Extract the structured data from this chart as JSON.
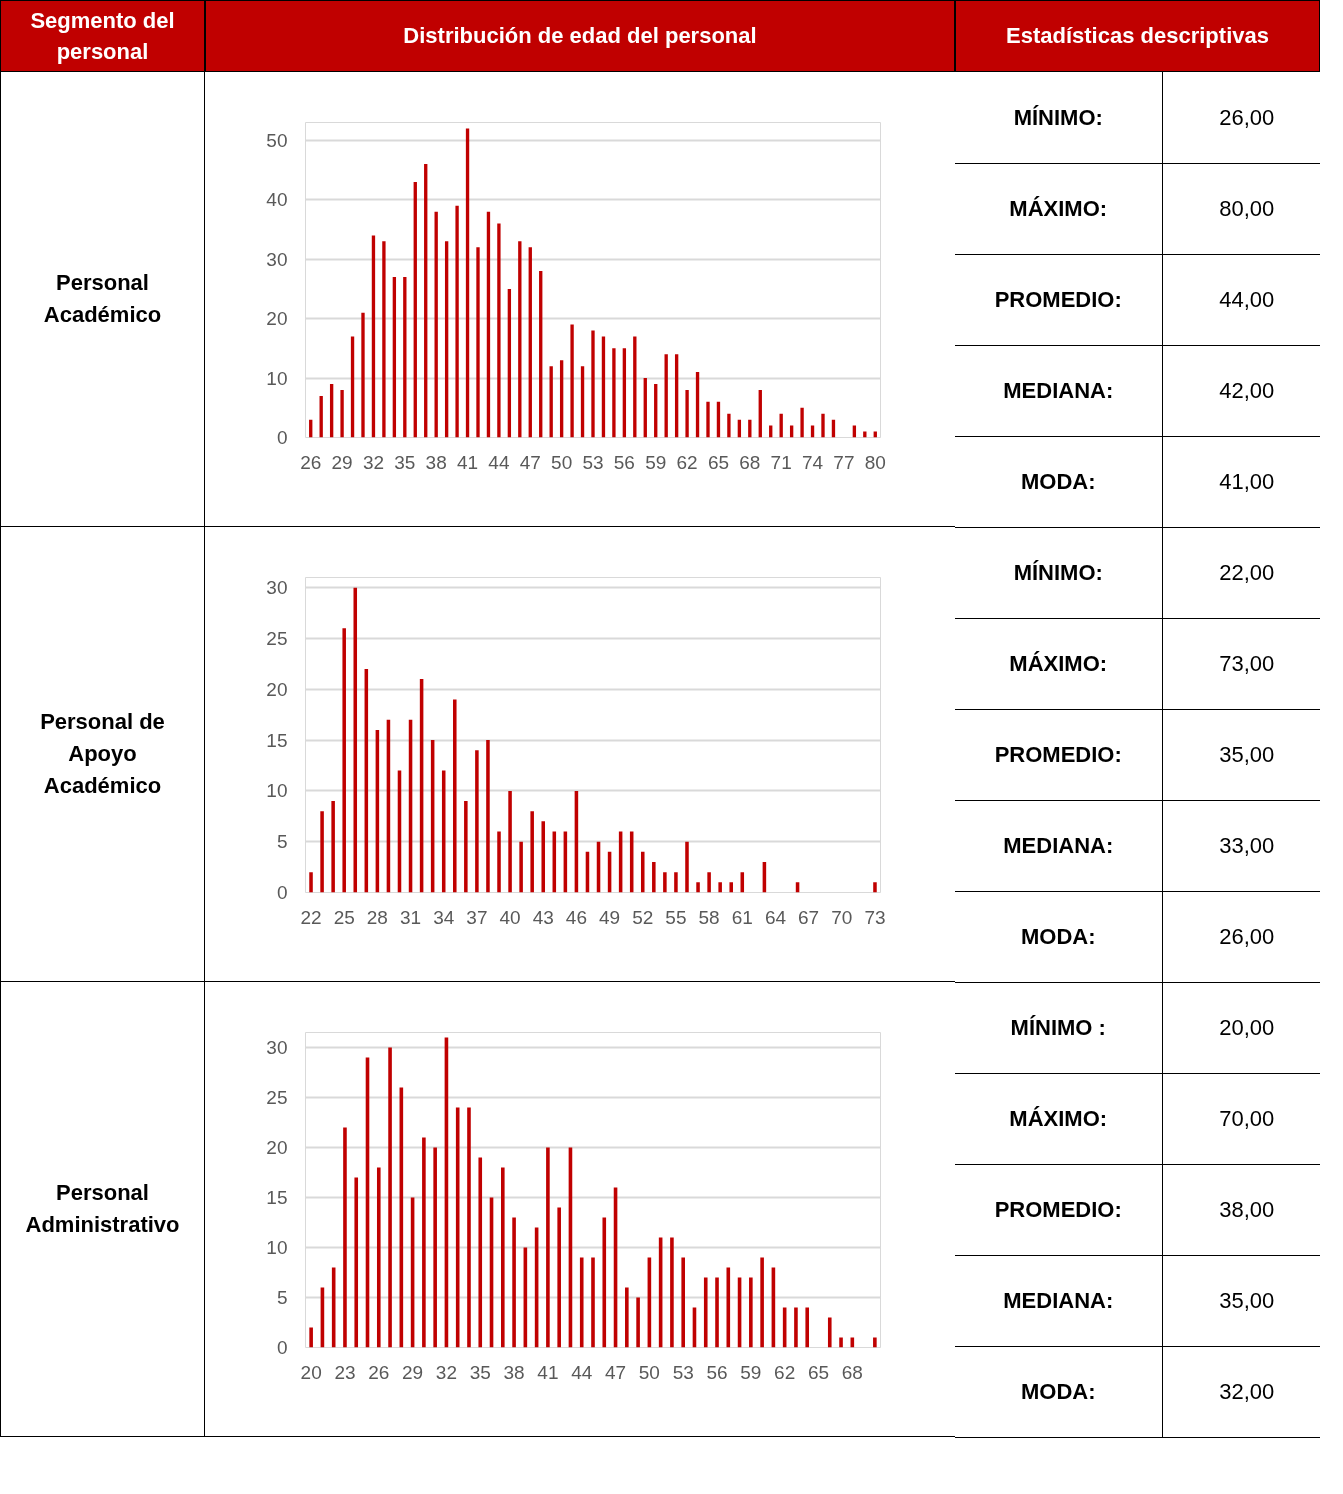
{
  "chart_data": [
    {
      "type": "other",
      "annotations": [
        "Segmento del personal",
        "Distribución de edad del personal",
        "Estadísticas descriptivas"
      ]
    },
    {
      "type": "bar",
      "color": "#c00000",
      "grid": "y",
      "x": [
        26,
        27,
        28,
        29,
        30,
        31,
        32,
        33,
        34,
        35,
        36,
        37,
        38,
        39,
        40,
        41,
        42,
        43,
        44,
        45,
        46,
        47,
        48,
        49,
        50,
        51,
        52,
        53,
        54,
        55,
        56,
        57,
        58,
        59,
        60,
        61,
        62,
        63,
        64,
        65,
        66,
        67,
        68,
        69,
        70,
        71,
        72,
        73,
        74,
        75,
        76,
        77,
        78,
        79,
        80
      ],
      "values": [
        3,
        7,
        9,
        8,
        17,
        21,
        34,
        33,
        27,
        27,
        43,
        46,
        38,
        33,
        39,
        52,
        32,
        38,
        36,
        25,
        33,
        32,
        28,
        12,
        13,
        19,
        12,
        18,
        17,
        15,
        15,
        17,
        10,
        9,
        14,
        14,
        8,
        11,
        6,
        6,
        4,
        3,
        3,
        8,
        2,
        4,
        2,
        5,
        2,
        4,
        3,
        0,
        2,
        1,
        1
      ],
      "xlim": [
        25.5,
        80.5
      ],
      "xticks": [
        26,
        29,
        32,
        35,
        38,
        41,
        44,
        47,
        50,
        53,
        56,
        59,
        62,
        65,
        68,
        71,
        74,
        77,
        80
      ],
      "ylim": [
        0,
        53
      ],
      "yticks": [
        0,
        10,
        20,
        30,
        40,
        50
      ],
      "annotations": [
        "Personal Académico",
        "MÍNIMO:",
        "26,00",
        "MÁXIMO:",
        "80,00",
        "PROMEDIO:",
        "44,00",
        "MEDIANA:",
        "42,00",
        "MODA:",
        "41,00"
      ]
    },
    {
      "type": "bar",
      "color": "#c00000",
      "grid": "y",
      "x": [
        22,
        23,
        24,
        25,
        26,
        27,
        28,
        29,
        30,
        31,
        32,
        33,
        34,
        35,
        36,
        37,
        38,
        39,
        40,
        41,
        42,
        43,
        44,
        45,
        46,
        47,
        48,
        49,
        50,
        51,
        52,
        53,
        54,
        55,
        56,
        57,
        58,
        59,
        60,
        61,
        62,
        63,
        64,
        65,
        66,
        67,
        68,
        69,
        70,
        71,
        72,
        73
      ],
      "values": [
        2,
        8,
        9,
        26,
        30,
        22,
        16,
        17,
        12,
        17,
        21,
        15,
        12,
        19,
        9,
        14,
        15,
        6,
        10,
        5,
        8,
        7,
        6,
        6,
        10,
        4,
        5,
        4,
        6,
        6,
        4,
        3,
        2,
        2,
        5,
        1,
        2,
        1,
        1,
        2,
        0,
        3,
        0,
        0,
        1,
        0,
        0,
        0,
        0,
        0,
        0,
        1
      ],
      "xlim": [
        21.5,
        73.5
      ],
      "xticks": [
        22,
        25,
        28,
        31,
        34,
        37,
        40,
        43,
        46,
        49,
        52,
        55,
        58,
        61,
        64,
        67,
        70,
        73
      ],
      "ylim": [
        0,
        31
      ],
      "yticks": [
        0,
        5,
        10,
        15,
        20,
        25,
        30
      ],
      "annotations": [
        "Personal de Apoyo Académico",
        "MÍNIMO:",
        "22,00",
        "MÁXIMO:",
        "73,00",
        "PROMEDIO:",
        "35,00",
        "MEDIANA:",
        "33,00",
        "MODA:",
        "26,00"
      ]
    },
    {
      "type": "bar",
      "color": "#c00000",
      "grid": "y",
      "x": [
        20,
        21,
        22,
        23,
        24,
        25,
        26,
        27,
        28,
        29,
        30,
        31,
        32,
        33,
        34,
        35,
        36,
        37,
        38,
        39,
        40,
        41,
        42,
        43,
        44,
        45,
        46,
        47,
        48,
        49,
        50,
        51,
        52,
        53,
        54,
        55,
        56,
        57,
        58,
        59,
        60,
        61,
        62,
        63,
        64,
        65,
        66,
        67,
        68,
        69,
        70
      ],
      "values": [
        2,
        6,
        8,
        22,
        17,
        29,
        18,
        30,
        26,
        15,
        21,
        20,
        31,
        24,
        24,
        19,
        15,
        18,
        13,
        10,
        12,
        20,
        14,
        20,
        9,
        9,
        13,
        16,
        6,
        5,
        9,
        11,
        11,
        9,
        4,
        7,
        7,
        8,
        7,
        7,
        9,
        8,
        4,
        4,
        4,
        0,
        3,
        1,
        1,
        0,
        1
      ],
      "xlim": [
        19.5,
        70.5
      ],
      "xticks": [
        20,
        23,
        26,
        29,
        32,
        35,
        38,
        41,
        44,
        47,
        50,
        53,
        56,
        59,
        62,
        65,
        68
      ],
      "ylim": [
        0,
        31.5
      ],
      "yticks": [
        0,
        5,
        10,
        15,
        20,
        25,
        30
      ],
      "annotations": [
        "Personal Administrativo",
        "MÍNIMO :",
        "20,00",
        "MÁXIMO:",
        "70,00",
        "PROMEDIO:",
        "38,00",
        "MEDIANA:",
        "35,00",
        "MODA:",
        "32,00"
      ]
    }
  ]
}
